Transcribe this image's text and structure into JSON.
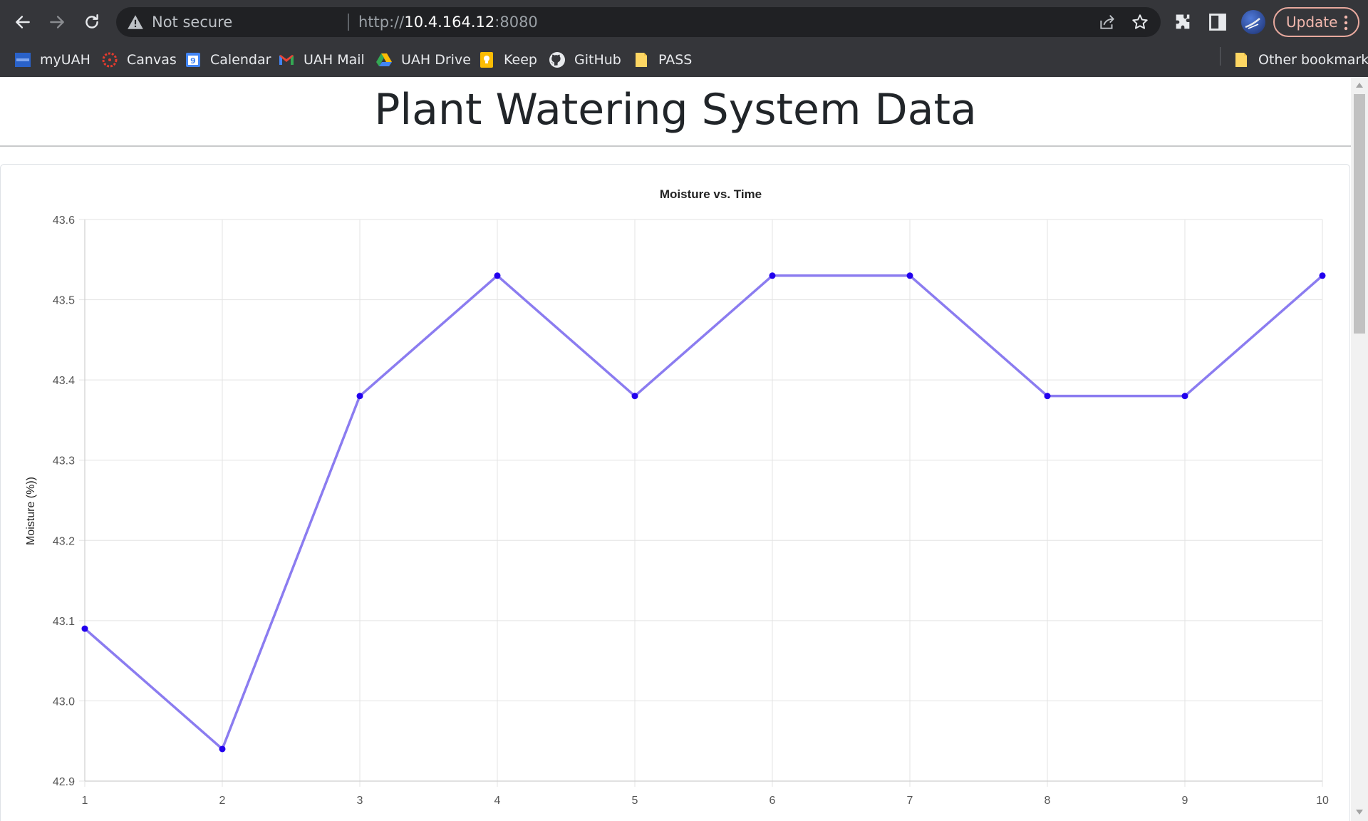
{
  "browser": {
    "security_label": "Not secure",
    "url_scheme": "http://",
    "url_host": "10.4.164.12",
    "url_port": ":8080",
    "update_label": "Update",
    "bookmarks": [
      {
        "label": "myUAH",
        "icon": "myuah-icon"
      },
      {
        "label": "Canvas",
        "icon": "canvas-icon"
      },
      {
        "label": "Calendar",
        "icon": "calendar-icon"
      },
      {
        "label": "UAH Mail",
        "icon": "gmail-icon"
      },
      {
        "label": "UAH Drive",
        "icon": "drive-icon"
      },
      {
        "label": "Keep",
        "icon": "keep-icon"
      },
      {
        "label": "GitHub",
        "icon": "github-icon"
      },
      {
        "label": "PASS",
        "icon": "folder-icon"
      }
    ],
    "other_bookmarks_label": "Other bookmarks",
    "calendar_day": "9"
  },
  "page": {
    "title": "Plant Watering System Data"
  },
  "chart_data": {
    "type": "line",
    "title": "Moisture vs. Time",
    "ylabel": "Moisture (%))",
    "xlabel": "",
    "x": [
      1,
      2,
      3,
      4,
      5,
      6,
      7,
      8,
      9,
      10
    ],
    "series": [
      {
        "values": [
          43.09,
          42.94,
          43.38,
          43.53,
          43.38,
          43.53,
          43.53,
          43.38,
          43.38,
          43.53
        ]
      }
    ],
    "ylim": [
      42.9,
      43.6
    ],
    "yticks": [
      "42.9",
      "43.0",
      "43.1",
      "43.2",
      "43.3",
      "43.4",
      "43.5",
      "43.6"
    ],
    "xticks": [
      "1",
      "2",
      "3",
      "4",
      "5",
      "6",
      "7",
      "8",
      "9",
      "10"
    ],
    "grid": true,
    "line_color": "#8b7cf0",
    "point_color": "#2200ee"
  }
}
